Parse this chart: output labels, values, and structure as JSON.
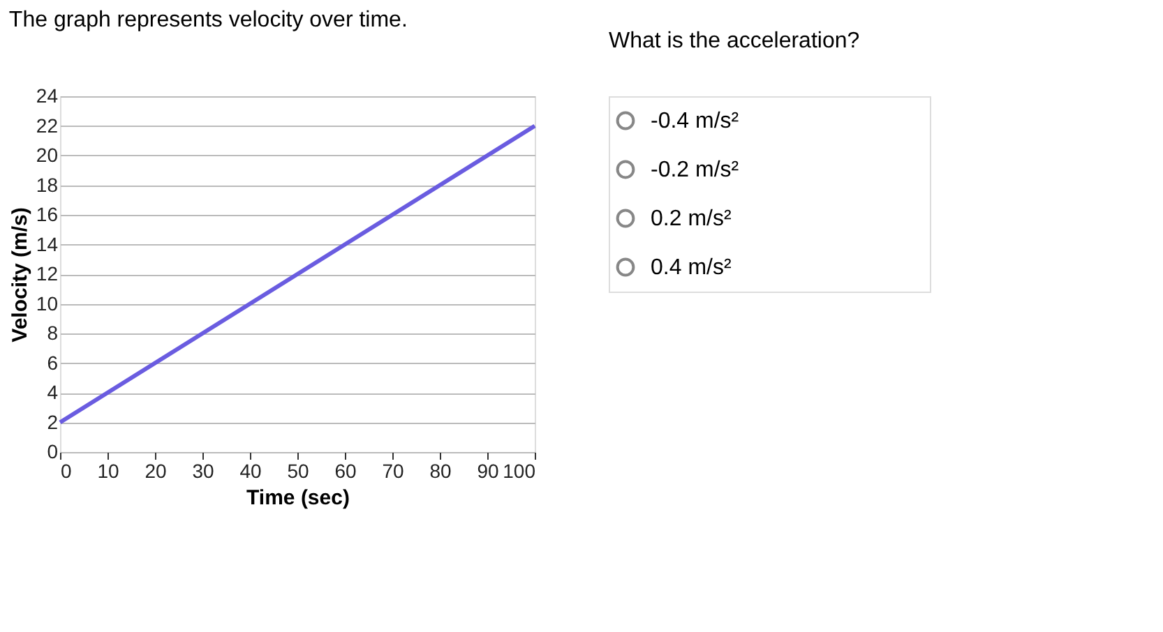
{
  "chart_data": {
    "type": "line",
    "title": "The graph represents velocity over time.",
    "xlabel": "Time (sec)",
    "ylabel": "Velocity (m/s)",
    "x": [
      0,
      100
    ],
    "series": [
      {
        "color": "#6a5ce0",
        "values": [
          2,
          22
        ]
      }
    ],
    "xlim": [
      0,
      100
    ],
    "xticks": [
      0,
      10,
      20,
      30,
      40,
      50,
      60,
      70,
      80,
      90,
      100
    ],
    "ylim": [
      0,
      24
    ],
    "yticks": [
      0,
      2,
      4,
      6,
      8,
      10,
      12,
      14,
      16,
      18,
      20,
      22,
      24
    ],
    "grid": "y",
    "marker": "none",
    "line_style": "solid",
    "annotations": [
      "What is the acceleration?",
      "-0.4 m/s²",
      "-0.2 m/s²",
      "0.2 m/s²",
      "0.4 m/s²"
    ]
  }
}
